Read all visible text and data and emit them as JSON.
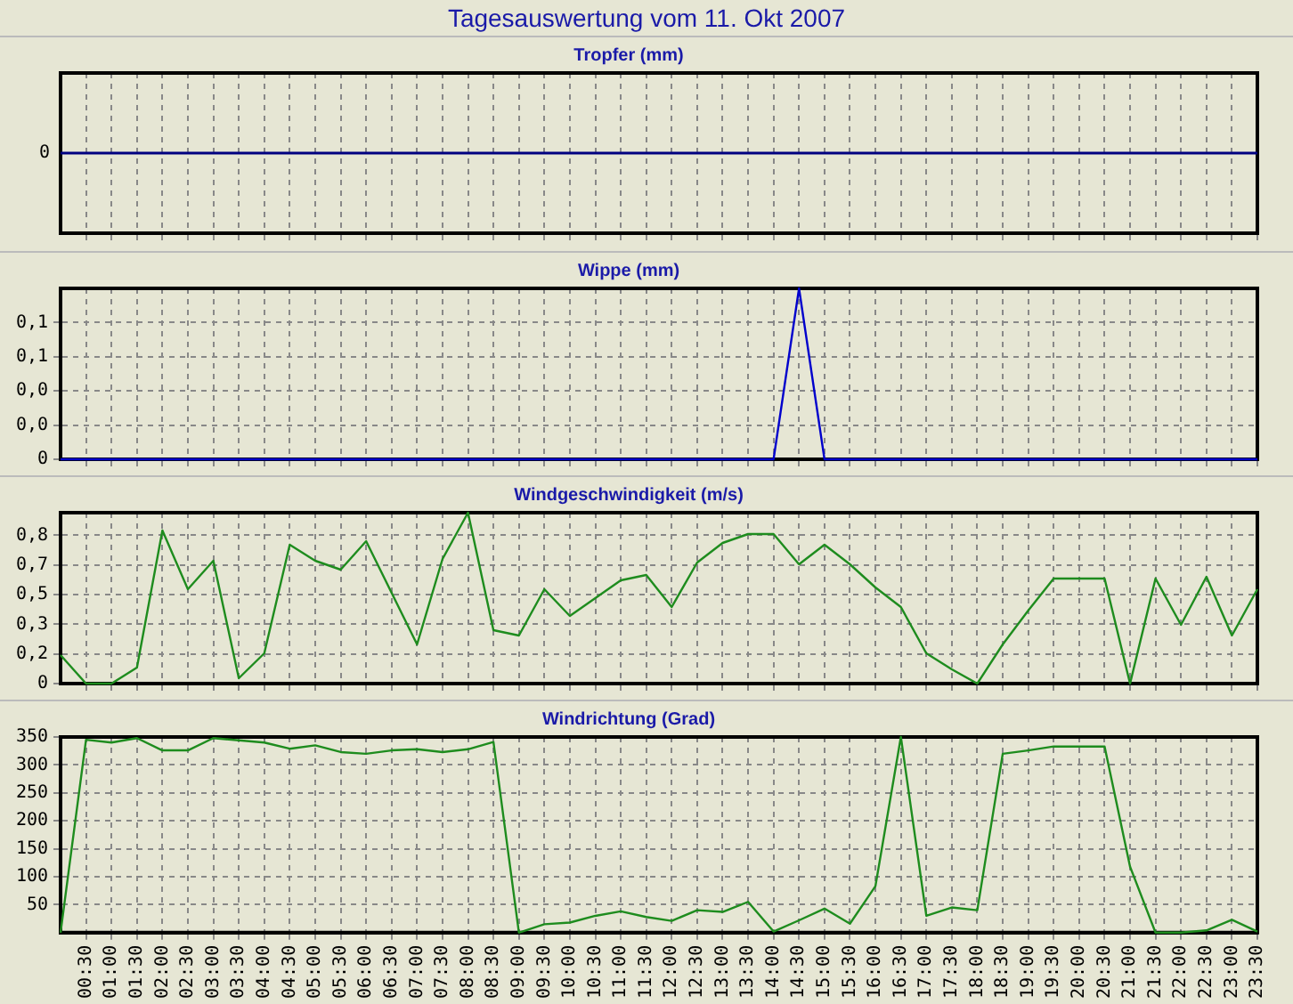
{
  "chart_data": [
    {
      "type": "other",
      "title": "Tagesauswertung vom 11. Okt 2007",
      "subtitle": "Tropfer (mm)",
      "annotations": [
        "0"
      ]
    },
    {
      "type": "line",
      "title": "Wippe (mm)",
      "color": "#0000cc",
      "marker": "none",
      "grid": true,
      "tick_labels": "y",
      "xlim": [
        0,
        23.5
      ],
      "ylim": [
        0,
        0.1
      ],
      "yticks": [
        0,
        {
          "value": 0.02,
          "label": "0,0"
        },
        {
          "value": 0.04,
          "label": "0,0"
        },
        {
          "value": 0.06,
          "label": "0,1"
        },
        {
          "value": 0.08,
          "label": "0,1"
        }
      ],
      "x": [
        0,
        0.5,
        1,
        1.5,
        2,
        2.5,
        3,
        3.5,
        4,
        4.5,
        5,
        5.5,
        6,
        6.5,
        7,
        7.5,
        8,
        8.5,
        9,
        9.5,
        10,
        10.5,
        11,
        11.5,
        12,
        12.5,
        13,
        13.5,
        14,
        14.5,
        15,
        15.5,
        16,
        16.5,
        17,
        17.5,
        18,
        18.5,
        19,
        19.5,
        20,
        20.5,
        21,
        21.5,
        22,
        22.5,
        23,
        23.5
      ],
      "values": [
        0,
        0,
        0,
        0,
        0,
        0,
        0,
        0,
        0,
        0,
        0,
        0,
        0,
        0,
        0,
        0,
        0,
        0,
        0,
        0,
        0,
        0,
        0,
        0,
        0,
        0,
        0,
        0,
        0,
        0.1,
        0,
        0,
        0,
        0,
        0,
        0,
        0,
        0,
        0,
        0,
        0,
        0,
        0,
        0,
        0,
        0,
        0,
        0
      ],
      "xticks": [
        0.5,
        1,
        1.5,
        2,
        2.5,
        3,
        3.5,
        4,
        4.5,
        5,
        5.5,
        6,
        6.5,
        7,
        7.5,
        8,
        8.5,
        9,
        9.5,
        10,
        10.5,
        11,
        11.5,
        12,
        12.5,
        13,
        13.5,
        14,
        14.5,
        15,
        15.5,
        16,
        16.5,
        17,
        17.5,
        18,
        18.5,
        19,
        19.5,
        20,
        20.5,
        21,
        21.5,
        22,
        22.5,
        23,
        23.5
      ]
    },
    {
      "type": "line",
      "title": "Windgeschwindigkeit (m/s)",
      "color": "#1e8c1e",
      "marker": "none",
      "grid": true,
      "tick_labels": "y",
      "xlim": [
        0,
        23.5
      ],
      "ylim": [
        0,
        0.96
      ],
      "yticks": [
        0,
        {
          "value": 0.167,
          "label": "0,2"
        },
        {
          "value": 0.333,
          "label": "0,3"
        },
        {
          "value": 0.5,
          "label": "0,5"
        },
        {
          "value": 0.667,
          "label": "0,7"
        },
        {
          "value": 0.833,
          "label": "0,8"
        }
      ],
      "x": [
        0,
        0.5,
        1,
        1.5,
        2,
        2.5,
        3,
        3.5,
        4,
        4.5,
        5,
        5.5,
        6,
        6.5,
        7,
        7.5,
        8,
        8.5,
        9,
        9.5,
        10,
        10.5,
        11,
        11.5,
        12,
        12.5,
        13,
        13.5,
        14,
        14.5,
        15,
        15.5,
        16,
        16.5,
        17,
        17.5,
        18,
        18.5,
        19,
        19.5,
        20,
        20.5,
        21,
        21.5,
        22,
        22.5,
        23,
        23.5
      ],
      "values": [
        0.16,
        0,
        0,
        0.09,
        0.86,
        0.53,
        0.69,
        0.03,
        0.17,
        0.78,
        0.69,
        0.64,
        0.8,
        0.51,
        0.22,
        0.7,
        0.96,
        0.3,
        0.27,
        0.53,
        0.38,
        0.48,
        0.58,
        0.61,
        0.43,
        0.68,
        0.79,
        0.84,
        0.84,
        0.67,
        0.78,
        0.67,
        0.54,
        0.43,
        0.17,
        0.08,
        0,
        0.22,
        0.41,
        0.59,
        0.59,
        0.59,
        0,
        0.59,
        0.33,
        0.6,
        0.27,
        0.53
      ],
      "xticks": [
        0.5,
        1,
        1.5,
        2,
        2.5,
        3,
        3.5,
        4,
        4.5,
        5,
        5.5,
        6,
        6.5,
        7,
        7.5,
        8,
        8.5,
        9,
        9.5,
        10,
        10.5,
        11,
        11.5,
        12,
        12.5,
        13,
        13.5,
        14,
        14.5,
        15,
        15.5,
        16,
        16.5,
        17,
        17.5,
        18,
        18.5,
        19,
        19.5,
        20,
        20.5,
        21,
        21.5,
        22,
        22.5,
        23,
        23.5
      ]
    },
    {
      "type": "line",
      "title": "Windrichtung (Grad)",
      "color": "#1e8c1e",
      "marker": "none",
      "grid": true,
      "xlim": [
        0,
        23.5
      ],
      "ylim": [
        0,
        350
      ],
      "yticks": [
        50,
        100,
        150,
        200,
        250,
        300,
        350
      ],
      "x": [
        0,
        0.5,
        1,
        1.5,
        2,
        2.5,
        3,
        3.5,
        4,
        4.5,
        5,
        5.5,
        6,
        6.5,
        7,
        7.5,
        8,
        8.5,
        9,
        9.5,
        10,
        10.5,
        11,
        11.5,
        12,
        12.5,
        13,
        13.5,
        14,
        14.5,
        15,
        15.5,
        16,
        16.5,
        17,
        17.5,
        18,
        18.5,
        19,
        19.5,
        20,
        20.5,
        21,
        21.5,
        22,
        22.5,
        23,
        23.5
      ],
      "values": [
        0,
        345,
        340,
        348,
        326,
        326,
        348,
        344,
        340,
        329,
        335,
        323,
        320,
        326,
        328,
        323,
        328,
        341,
        0,
        15,
        18,
        30,
        38,
        28,
        21,
        40,
        37,
        55,
        2,
        22,
        43,
        16,
        83,
        350,
        30,
        45,
        40,
        320,
        326,
        333,
        333,
        333,
        118,
        0,
        0,
        4,
        23,
        2
      ],
      "xticks": [
        {
          "value": 0.5,
          "label": "00:30"
        },
        {
          "value": 1,
          "label": "01:00"
        },
        {
          "value": 1.5,
          "label": "01:30"
        },
        {
          "value": 2,
          "label": "02:00"
        },
        {
          "value": 2.5,
          "label": "02:30"
        },
        {
          "value": 3,
          "label": "03:00"
        },
        {
          "value": 3.5,
          "label": "03:30"
        },
        {
          "value": 4,
          "label": "04:00"
        },
        {
          "value": 4.5,
          "label": "04:30"
        },
        {
          "value": 5,
          "label": "05:00"
        },
        {
          "value": 5.5,
          "label": "05:30"
        },
        {
          "value": 6,
          "label": "06:00"
        },
        {
          "value": 6.5,
          "label": "06:30"
        },
        {
          "value": 7,
          "label": "07:00"
        },
        {
          "value": 7.5,
          "label": "07:30"
        },
        {
          "value": 8,
          "label": "08:00"
        },
        {
          "value": 8.5,
          "label": "08:30"
        },
        {
          "value": 9,
          "label": "09:00"
        },
        {
          "value": 9.5,
          "label": "09:30"
        },
        {
          "value": 10,
          "label": "10:00"
        },
        {
          "value": 10.5,
          "label": "10:30"
        },
        {
          "value": 11,
          "label": "11:00"
        },
        {
          "value": 11.5,
          "label": "11:30"
        },
        {
          "value": 12,
          "label": "12:00"
        },
        {
          "value": 12.5,
          "label": "12:30"
        },
        {
          "value": 13,
          "label": "13:00"
        },
        {
          "value": 13.5,
          "label": "13:30"
        },
        {
          "value": 14,
          "label": "14:00"
        },
        {
          "value": 14.5,
          "label": "14:30"
        },
        {
          "value": 15,
          "label": "15:00"
        },
        {
          "value": 15.5,
          "label": "15:30"
        },
        {
          "value": 16,
          "label": "16:00"
        },
        {
          "value": 16.5,
          "label": "16:30"
        },
        {
          "value": 17,
          "label": "17:00"
        },
        {
          "value": 17.5,
          "label": "17:30"
        },
        {
          "value": 18,
          "label": "18:00"
        },
        {
          "value": 18.5,
          "label": "18:30"
        },
        {
          "value": 19,
          "label": "19:00"
        },
        {
          "value": 19.5,
          "label": "19:30"
        },
        {
          "value": 20,
          "label": "20:00"
        },
        {
          "value": 20.5,
          "label": "20:30"
        },
        {
          "value": 21,
          "label": "21:00"
        },
        {
          "value": 21.5,
          "label": "21:30"
        },
        {
          "value": 22,
          "label": "22:00"
        },
        {
          "value": 22.5,
          "label": "22:30"
        },
        {
          "value": 23,
          "label": "23:00"
        },
        {
          "value": 23.5,
          "label": "23:30"
        }
      ]
    }
  ]
}
